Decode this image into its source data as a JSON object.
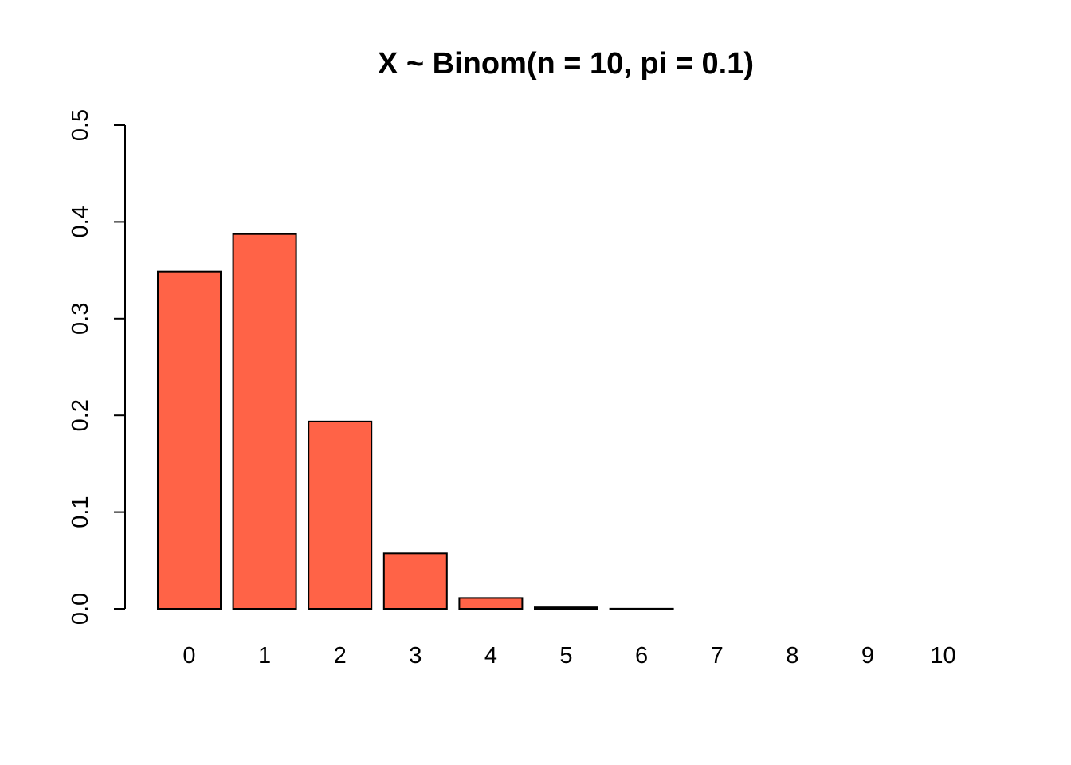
{
  "chart_data": {
    "type": "bar",
    "title": "X ~ Binom(n = 10, pi = 0.1)",
    "xlabel": "",
    "ylabel": "",
    "categories": [
      "0",
      "1",
      "2",
      "3",
      "4",
      "5",
      "6",
      "7",
      "8",
      "9",
      "10"
    ],
    "values": [
      0.3487,
      0.3874,
      0.1937,
      0.0574,
      0.0112,
      0.0015,
      0.0001,
      0.0,
      0.0,
      0.0,
      0.0
    ],
    "ylim": [
      0,
      0.5
    ],
    "yticks": [
      "0.0",
      "0.1",
      "0.2",
      "0.3",
      "0.4",
      "0.5"
    ],
    "grid": false,
    "legend": "none",
    "bar_color": "#FF6347"
  }
}
